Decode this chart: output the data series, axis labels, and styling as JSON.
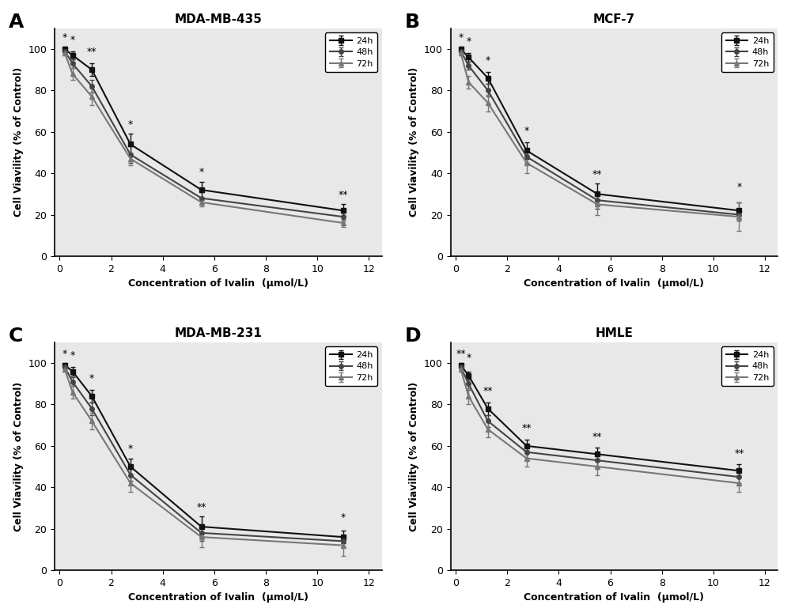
{
  "x": [
    0.2,
    0.5,
    1.25,
    2.75,
    5.5,
    11.0
  ],
  "panels": [
    {
      "label": "A",
      "title": "MDA-MB-435",
      "y_24h": [
        100,
        97,
        90,
        54,
        32,
        22
      ],
      "y_48h": [
        99,
        93,
        82,
        49,
        28,
        19
      ],
      "y_72h": [
        98,
        88,
        77,
        47,
        26,
        16
      ],
      "err_24h": [
        1,
        2,
        3,
        5,
        4,
        3
      ],
      "err_48h": [
        1,
        2,
        3,
        4,
        3,
        2
      ],
      "err_72h": [
        1,
        3,
        4,
        3,
        2,
        2
      ],
      "sig_labels": [
        "*",
        "*",
        "**",
        "*",
        "*",
        "**"
      ],
      "sig_x": [
        0.2,
        0.5,
        1.25,
        2.75,
        5.5,
        11.0
      ]
    },
    {
      "label": "B",
      "title": "MCF-7",
      "y_24h": [
        100,
        96,
        86,
        51,
        30,
        22
      ],
      "y_48h": [
        99,
        92,
        80,
        48,
        27,
        20
      ],
      "y_72h": [
        98,
        84,
        74,
        45,
        25,
        19
      ],
      "err_24h": [
        1,
        2,
        3,
        4,
        5,
        4
      ],
      "err_48h": [
        1,
        2,
        3,
        3,
        4,
        3
      ],
      "err_72h": [
        1,
        3,
        4,
        5,
        5,
        7
      ],
      "sig_labels": [
        "*",
        "*",
        "*",
        "*",
        "**",
        "*"
      ],
      "sig_x": [
        0.2,
        0.5,
        1.25,
        2.75,
        5.5,
        11.0
      ]
    },
    {
      "label": "C",
      "title": "MDA-MB-231",
      "y_24h": [
        99,
        96,
        84,
        50,
        21,
        16
      ],
      "y_48h": [
        98,
        91,
        78,
        46,
        18,
        14
      ],
      "y_72h": [
        97,
        86,
        72,
        42,
        16,
        12
      ],
      "err_24h": [
        1,
        2,
        3,
        4,
        5,
        3
      ],
      "err_48h": [
        1,
        2,
        3,
        3,
        4,
        3
      ],
      "err_72h": [
        1,
        3,
        4,
        4,
        5,
        5
      ],
      "sig_labels": [
        "*",
        "*",
        "*",
        "*",
        "**",
        "*"
      ],
      "sig_x": [
        0.2,
        0.5,
        1.25,
        2.75,
        5.5,
        11.0
      ]
    },
    {
      "label": "D",
      "title": "HMLE",
      "y_24h": [
        99,
        94,
        78,
        60,
        56,
        48
      ],
      "y_48h": [
        98,
        90,
        72,
        57,
        53,
        45
      ],
      "y_72h": [
        97,
        84,
        68,
        54,
        50,
        42
      ],
      "err_24h": [
        1,
        2,
        3,
        3,
        3,
        3
      ],
      "err_48h": [
        1,
        3,
        3,
        3,
        3,
        3
      ],
      "err_72h": [
        1,
        4,
        4,
        4,
        4,
        4
      ],
      "sig_labels": [
        "**",
        "*",
        "**",
        "**",
        "**",
        "**"
      ],
      "sig_x": [
        0.2,
        0.5,
        1.25,
        2.75,
        5.5,
        11.0
      ]
    }
  ],
  "colors": {
    "24h": "#111111",
    "48h": "#444444",
    "72h": "#777777"
  },
  "legend_labels": [
    "24h",
    "48h",
    "72h"
  ],
  "xlabel": "Concentration of Ivalin  (μmol/L)",
  "ylabel": "Cell Viavility (% of Control)",
  "xlim": [
    -0.2,
    12.5
  ],
  "ylim": [
    0,
    110
  ],
  "yticks": [
    0,
    20,
    40,
    60,
    80,
    100
  ],
  "xticks": [
    0,
    2,
    4,
    6,
    8,
    10,
    12
  ]
}
